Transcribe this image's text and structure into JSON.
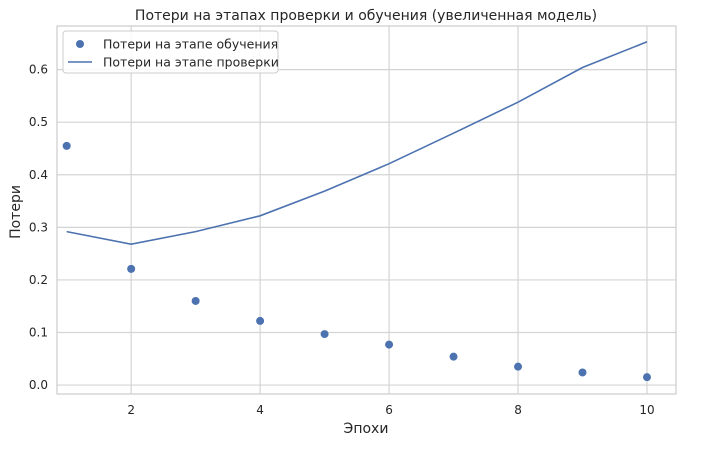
{
  "chart_data": {
    "type": "line",
    "title": "Потери на этапах проверки и обучения (увеличенная модель)",
    "xlabel": "Эпохи",
    "ylabel": "Потери",
    "x": [
      1,
      2,
      3,
      4,
      5,
      6,
      7,
      8,
      9,
      10
    ],
    "xlim": [
      0.85,
      10.45
    ],
    "ylim": [
      -0.017,
      0.683
    ],
    "xticks": [
      2,
      4,
      6,
      8,
      10
    ],
    "yticks": [
      0.0,
      0.1,
      0.2,
      0.3,
      0.4,
      0.5,
      0.6
    ],
    "xtick_labels": [
      "2",
      "4",
      "6",
      "8",
      "10"
    ],
    "ytick_labels": [
      "0.0",
      "0.1",
      "0.2",
      "0.3",
      "0.4",
      "0.5",
      "0.6"
    ],
    "grid": true,
    "legend_position": "top-left",
    "series": [
      {
        "name": "Потери на этапе обучения",
        "style": "markers",
        "color": "#4c72b0",
        "values": [
          0.455,
          0.221,
          0.16,
          0.122,
          0.097,
          0.077,
          0.054,
          0.035,
          0.024,
          0.015
        ]
      },
      {
        "name": "Потери на этапе проверки",
        "style": "line",
        "color": "#4c72b0",
        "values": [
          0.292,
          0.268,
          0.292,
          0.322,
          0.369,
          0.421,
          0.479,
          0.538,
          0.604,
          0.653
        ]
      }
    ]
  }
}
